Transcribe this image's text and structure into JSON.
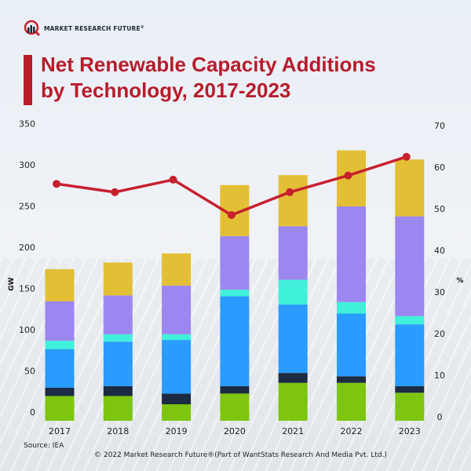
{
  "brand": {
    "name": "MARKET RESEARCH FUTURE",
    "registered": "®"
  },
  "title": {
    "line1": "Net Renewable Capacity Additions",
    "line2": "by Technology, 2017-2023"
  },
  "colors": {
    "title": "#b71c2b",
    "line": "#c8202e",
    "series": [
      "#7dc50e",
      "#1c2b42",
      "#2a9bff",
      "#3ff1da",
      "#9c86f0",
      "#e2bf35"
    ]
  },
  "footer": {
    "source": "Source: IEA",
    "copyright": "© 2022 Market Research Future®(Part of WantStats Research And Media Pvt. Ltd.)"
  },
  "chart_data": {
    "type": "bar",
    "stacked": true,
    "title": "Net Renewable Capacity Additions by Technology, 2017-2023",
    "xlabel": "",
    "ylabel": "GW",
    "y2label": "%",
    "categories": [
      "2017",
      "2018",
      "2019",
      "2020",
      "2021",
      "2022",
      "2023"
    ],
    "ylim": [
      0,
      350
    ],
    "yticks": [
      0,
      50,
      100,
      150,
      200,
      250,
      300,
      350
    ],
    "y2lim": [
      0,
      70
    ],
    "y2ticks": [
      0,
      10,
      20,
      30,
      40,
      50,
      60,
      70
    ],
    "grid": false,
    "legend": "none",
    "series": [
      {
        "name": "Segment 1 (green)",
        "values": [
          30,
          30,
          20,
          33,
          46,
          46,
          34
        ]
      },
      {
        "name": "Segment 2 (dark navy)",
        "values": [
          10,
          12,
          13,
          9,
          12,
          8,
          8
        ]
      },
      {
        "name": "Segment 3 (blue)",
        "values": [
          47,
          54,
          65,
          109,
          83,
          76,
          75
        ]
      },
      {
        "name": "Segment 4 (cyan)",
        "values": [
          10,
          9,
          7,
          8,
          30,
          14,
          10
        ]
      },
      {
        "name": "Segment 5 (purple)",
        "values": [
          48,
          47,
          59,
          65,
          65,
          116,
          121
        ]
      },
      {
        "name": "Segment 6 (yellow)",
        "values": [
          39,
          40,
          39,
          62,
          62,
          68,
          69
        ]
      }
    ],
    "line_series": {
      "name": "Share (%)",
      "axis": "right",
      "values": [
        56,
        54,
        57,
        48.5,
        54,
        58,
        62.5
      ]
    }
  }
}
